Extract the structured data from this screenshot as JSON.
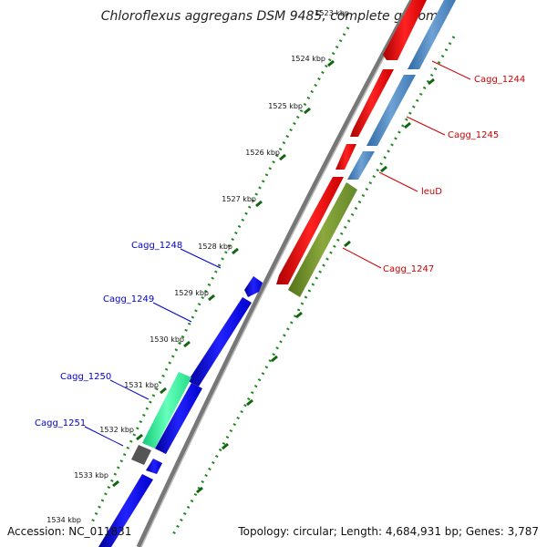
{
  "title": "Chloroflexus aggregans DSM 9485, complete genome",
  "footer": {
    "accession": "Accession: NC_011831",
    "topology": "Topology: circular; Length: 4,684,931 bp; Genes: 3,787"
  },
  "ticks": [
    "1523 kbp",
    "1524 kbp",
    "1525 kbp",
    "1526 kbp",
    "1527 kbp",
    "1528 kbp",
    "1529 kbp",
    "1530 kbp",
    "1531 kbp",
    "1532 kbp",
    "1533 kbp",
    "1534 kbp"
  ],
  "genes_right": [
    {
      "name": "Cagg_1244",
      "color": "#cc0000"
    },
    {
      "name": "Cagg_1245",
      "color": "#cc0000"
    },
    {
      "name": "leuD",
      "color": "#cc0000"
    },
    {
      "name": "Cagg_1247",
      "color": "#cc0000"
    }
  ],
  "genes_left": [
    {
      "name": "Cagg_1248",
      "color": "#0000cc"
    },
    {
      "name": "Cagg_1249",
      "color": "#0000cc"
    },
    {
      "name": "Cagg_1250",
      "color": "#0000cc"
    },
    {
      "name": "Cagg_1251",
      "color": "#0000cc"
    }
  ],
  "colors": {
    "forward_strand": "#ff0000",
    "reverse_strand": "#0000ee",
    "feature_steelblue": "#4a86c0",
    "feature_olive": "#6b8e23",
    "feature_aqua": "#22ee99",
    "feature_gray": "#555555",
    "backbone": "#888888",
    "tick_marks": "#228822"
  }
}
